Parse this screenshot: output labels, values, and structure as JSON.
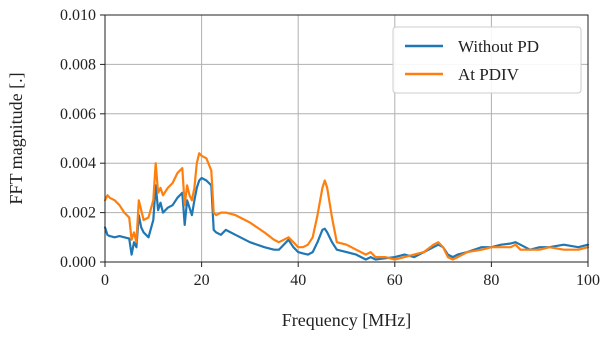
{
  "chart_data": {
    "type": "line",
    "title": "",
    "xlabel": "Frequency [MHz]",
    "ylabel": "FFT magnitude [.]",
    "xlim": [
      0,
      100
    ],
    "ylim": [
      0,
      0.01
    ],
    "grid": true,
    "legend_position": "top-right",
    "xticks": [
      0,
      20,
      40,
      60,
      80,
      100
    ],
    "xtick_labels": [
      "0",
      "20",
      "40",
      "60",
      "80",
      "100"
    ],
    "yticks": [
      0,
      0.002,
      0.004,
      0.006,
      0.008,
      0.01
    ],
    "ytick_labels": [
      "0.000",
      "0.002",
      "0.004",
      "0.006",
      "0.008",
      "0.010"
    ],
    "series": [
      {
        "name": "Without PD",
        "color": "#1f77b4",
        "x": [
          0,
          0.5,
          1,
          2,
          3,
          4,
          5,
          5.5,
          6,
          6.5,
          7,
          7.5,
          8,
          9,
          10,
          10.5,
          11,
          11.5,
          12,
          13,
          14,
          15,
          16,
          16.5,
          17,
          17.5,
          18,
          18.5,
          19,
          19.5,
          20,
          21,
          22,
          22.5,
          23,
          24,
          25,
          27,
          30,
          33,
          35,
          36,
          37,
          38,
          39,
          40,
          41,
          42,
          43,
          44,
          45,
          45.5,
          46,
          47,
          48,
          50,
          52,
          54,
          55,
          56,
          58,
          60,
          62,
          64,
          66,
          68,
          69,
          70,
          71,
          72,
          73,
          75,
          78,
          80,
          82,
          84,
          85,
          86,
          88,
          90,
          92,
          95,
          98,
          100
        ],
        "y": [
          0.0014,
          0.0011,
          0.00105,
          0.001,
          0.00105,
          0.001,
          0.00095,
          0.0003,
          0.0008,
          0.0006,
          0.0019,
          0.0014,
          0.0012,
          0.001,
          0.0017,
          0.0031,
          0.0021,
          0.0024,
          0.002,
          0.0022,
          0.0023,
          0.0026,
          0.0028,
          0.0015,
          0.0025,
          0.0022,
          0.0019,
          0.0025,
          0.003,
          0.0033,
          0.0034,
          0.0033,
          0.0031,
          0.0013,
          0.0012,
          0.0011,
          0.0013,
          0.0011,
          0.0008,
          0.0006,
          0.0005,
          0.0005,
          0.0007,
          0.0009,
          0.0006,
          0.0004,
          0.00035,
          0.0003,
          0.0004,
          0.0008,
          0.0013,
          0.00135,
          0.0012,
          0.0008,
          0.0005,
          0.0004,
          0.0003,
          0.0001,
          0.0002,
          0.0001,
          0.00015,
          0.0002,
          0.0003,
          0.0002,
          0.0004,
          0.0006,
          0.0007,
          0.0006,
          0.0003,
          0.0002,
          0.0003,
          0.0004,
          0.0006,
          0.0006,
          0.0007,
          0.00075,
          0.0008,
          0.0007,
          0.0005,
          0.0006,
          0.0006,
          0.0007,
          0.0006,
          0.0007
        ]
      },
      {
        "name": "At PDIV",
        "color": "#ff7f0e",
        "x": [
          0,
          0.5,
          1,
          2,
          3,
          4,
          5,
          5.5,
          6,
          6.5,
          7,
          7.5,
          8,
          9,
          10,
          10.5,
          11,
          11.5,
          12,
          13,
          14,
          15,
          16,
          16.5,
          17,
          17.5,
          18,
          18.5,
          19,
          19.5,
          20,
          21,
          22,
          22.5,
          23,
          24,
          25,
          27,
          30,
          33,
          35,
          36,
          37,
          38,
          39,
          40,
          41,
          42,
          43,
          44,
          45,
          45.5,
          46,
          47,
          48,
          50,
          52,
          54,
          55,
          56,
          58,
          60,
          62,
          64,
          66,
          68,
          69,
          70,
          71,
          72,
          73,
          75,
          78,
          80,
          82,
          84,
          85,
          86,
          88,
          90,
          92,
          95,
          98,
          100
        ],
        "y": [
          0.0025,
          0.0027,
          0.0026,
          0.0025,
          0.0023,
          0.002,
          0.0018,
          0.0009,
          0.0012,
          0.0008,
          0.0025,
          0.0021,
          0.0017,
          0.0018,
          0.0025,
          0.004,
          0.0028,
          0.003,
          0.0027,
          0.003,
          0.0032,
          0.0036,
          0.0038,
          0.0023,
          0.0031,
          0.0027,
          0.0025,
          0.003,
          0.004,
          0.0044,
          0.0043,
          0.0042,
          0.0037,
          0.002,
          0.0019,
          0.002,
          0.002,
          0.0019,
          0.0016,
          0.0012,
          0.0009,
          0.0008,
          0.0009,
          0.001,
          0.0008,
          0.0006,
          0.0006,
          0.0007,
          0.001,
          0.0019,
          0.003,
          0.0033,
          0.003,
          0.0018,
          0.0008,
          0.0007,
          0.0005,
          0.0003,
          0.0004,
          0.0002,
          0.0002,
          0.0001,
          0.0002,
          0.0003,
          0.0004,
          0.0007,
          0.0008,
          0.0006,
          0.0002,
          0.0001,
          0.0002,
          0.0004,
          0.0005,
          0.0006,
          0.0006,
          0.0006,
          0.0007,
          0.0005,
          0.0005,
          0.0005,
          0.0006,
          0.0005,
          0.0005,
          0.0006
        ]
      }
    ]
  }
}
